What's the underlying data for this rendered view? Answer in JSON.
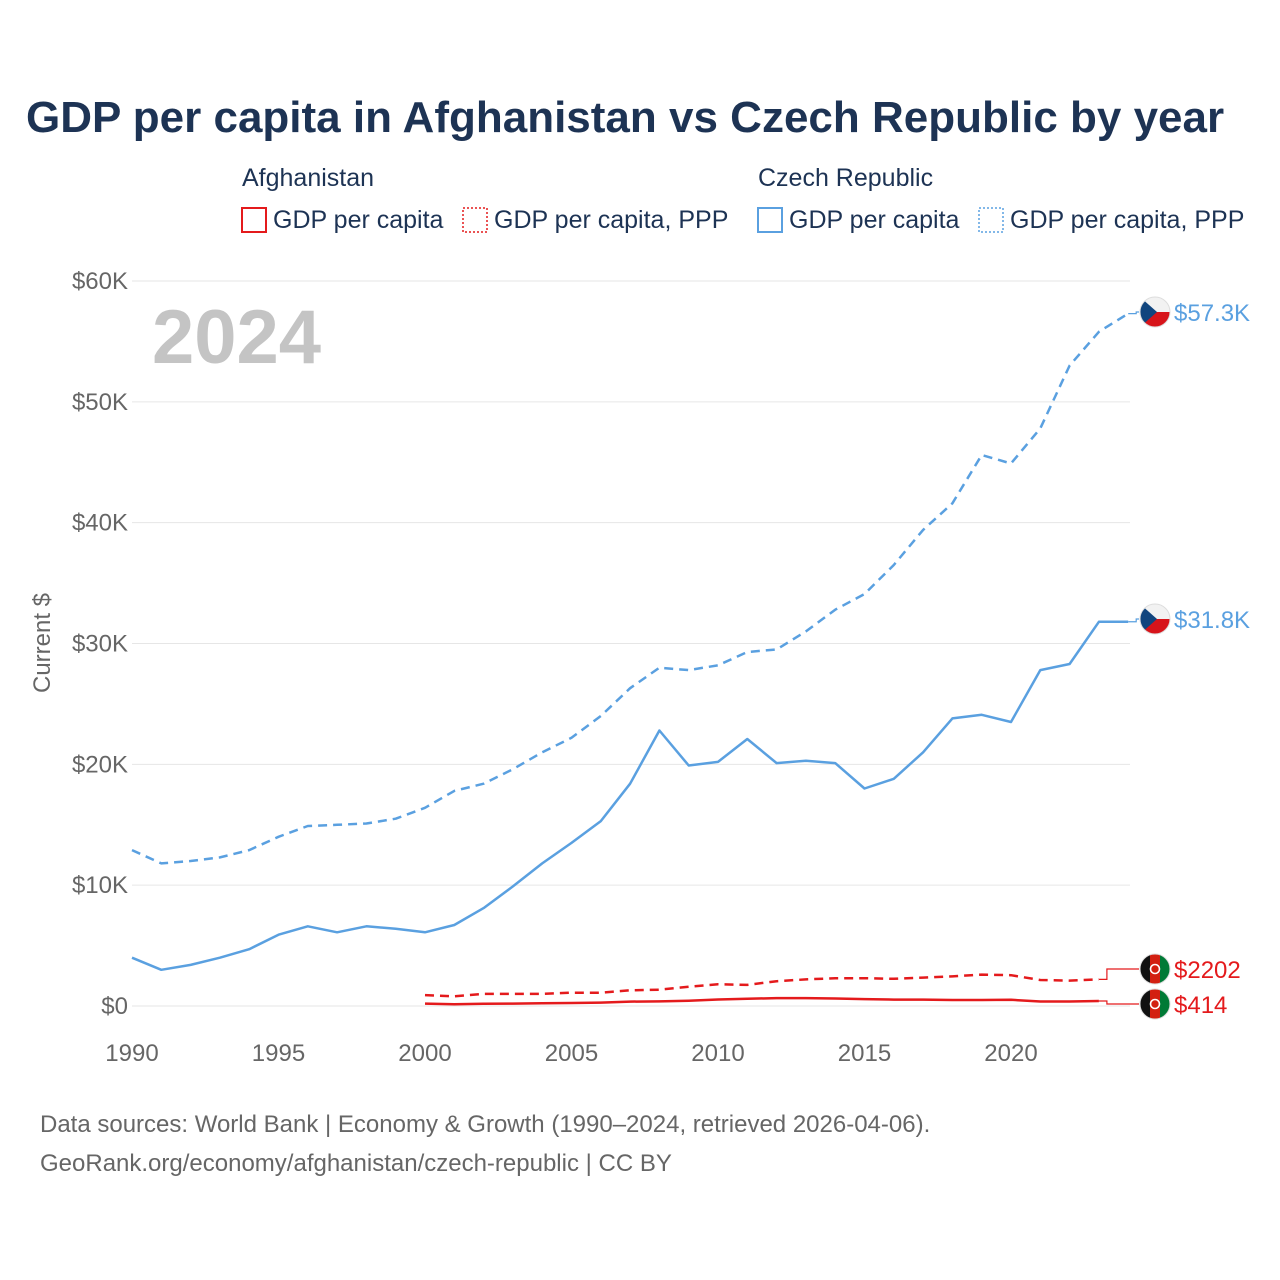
{
  "chart_data": {
    "type": "line",
    "title": "GDP per capita in Afghanistan vs Czech Republic by year",
    "ylabel": "Current $",
    "year_watermark": "2024",
    "xlim": [
      1990,
      2024
    ],
    "ylim": [
      0,
      60000
    ],
    "y_ticks": [
      {
        "value": 0,
        "label": "$0"
      },
      {
        "value": 10000,
        "label": "$10K"
      },
      {
        "value": 20000,
        "label": "$20K"
      },
      {
        "value": 30000,
        "label": "$30K"
      },
      {
        "value": 40000,
        "label": "$40K"
      },
      {
        "value": 50000,
        "label": "$50K"
      },
      {
        "value": 60000,
        "label": "$60K"
      }
    ],
    "x_ticks": [
      {
        "value": 1990,
        "label": "1990"
      },
      {
        "value": 1995,
        "label": "1995"
      },
      {
        "value": 2000,
        "label": "2000"
      },
      {
        "value": 2005,
        "label": "2005"
      },
      {
        "value": 2010,
        "label": "2010"
      },
      {
        "value": 2015,
        "label": "2015"
      },
      {
        "value": 2020,
        "label": "2020"
      }
    ],
    "legend": [
      {
        "group": "Afghanistan",
        "items": [
          {
            "label": "GDP per capita",
            "style": "solid",
            "color": "#e41a1c"
          },
          {
            "label": "GDP per capita, PPP",
            "style": "dotted",
            "color": "#e41a1c"
          }
        ]
      },
      {
        "group": "Czech Republic",
        "items": [
          {
            "label": "GDP per capita",
            "style": "solid",
            "color": "#5aa0e0"
          },
          {
            "label": "GDP per capita, PPP",
            "style": "dotted",
            "color": "#5aa0e0"
          }
        ]
      }
    ],
    "series": [
      {
        "name": "Czech Republic GDP per capita, PPP",
        "country": "Czech Republic",
        "color": "#5aa0e0",
        "dash": true,
        "end_label": "$57.3K",
        "x": [
          1990,
          1991,
          1992,
          1993,
          1994,
          1995,
          1996,
          1997,
          1998,
          1999,
          2000,
          2001,
          2002,
          2003,
          2004,
          2005,
          2006,
          2007,
          2008,
          2009,
          2010,
          2011,
          2012,
          2013,
          2014,
          2015,
          2016,
          2017,
          2018,
          2019,
          2020,
          2021,
          2022,
          2023,
          2024
        ],
        "values": [
          12900,
          11800,
          12000,
          12300,
          12900,
          14000,
          14900,
          15000,
          15100,
          15500,
          16400,
          17800,
          18400,
          19600,
          21000,
          22200,
          24000,
          26300,
          28000,
          27800,
          28200,
          29300,
          29500,
          31000,
          32800,
          34100,
          36500,
          39400,
          41600,
          45600,
          44900,
          47800,
          53000,
          55800,
          57300
        ]
      },
      {
        "name": "Czech Republic GDP per capita",
        "country": "Czech Republic",
        "color": "#5aa0e0",
        "dash": false,
        "end_label": "$31.8K",
        "x": [
          1990,
          1991,
          1992,
          1993,
          1994,
          1995,
          1996,
          1997,
          1998,
          1999,
          2000,
          2001,
          2002,
          2003,
          2004,
          2005,
          2006,
          2007,
          2008,
          2009,
          2010,
          2011,
          2012,
          2013,
          2014,
          2015,
          2016,
          2017,
          2018,
          2019,
          2020,
          2021,
          2022,
          2023,
          2024
        ],
        "values": [
          4000,
          3000,
          3400,
          4000,
          4700,
          5900,
          6600,
          6100,
          6600,
          6400,
          6100,
          6700,
          8100,
          9900,
          11800,
          13500,
          15300,
          18400,
          22800,
          19900,
          20200,
          22100,
          20100,
          20300,
          20100,
          18000,
          18800,
          21000,
          23800,
          24100,
          23500,
          27800,
          28300,
          31800,
          31800
        ]
      },
      {
        "name": "Afghanistan GDP per capita, PPP",
        "country": "Afghanistan",
        "color": "#e41a1c",
        "dash": true,
        "end_label": "$2202",
        "x": [
          2000,
          2001,
          2002,
          2003,
          2004,
          2005,
          2006,
          2007,
          2008,
          2009,
          2010,
          2011,
          2012,
          2013,
          2014,
          2015,
          2016,
          2017,
          2018,
          2019,
          2020,
          2021,
          2022,
          2023
        ],
        "values": [
          900,
          800,
          1000,
          1000,
          1000,
          1100,
          1100,
          1300,
          1350,
          1600,
          1800,
          1750,
          2050,
          2200,
          2300,
          2300,
          2250,
          2350,
          2450,
          2600,
          2550,
          2150,
          2100,
          2202
        ]
      },
      {
        "name": "Afghanistan GDP per capita",
        "country": "Afghanistan",
        "color": "#e41a1c",
        "dash": false,
        "end_label": "$414",
        "x": [
          2000,
          2001,
          2002,
          2003,
          2004,
          2005,
          2006,
          2007,
          2008,
          2009,
          2010,
          2011,
          2012,
          2013,
          2014,
          2015,
          2016,
          2017,
          2018,
          2019,
          2020,
          2021,
          2022,
          2023
        ],
        "values": [
          200,
          150,
          180,
          200,
          220,
          250,
          280,
          360,
          380,
          440,
          540,
          600,
          650,
          650,
          620,
          570,
          530,
          530,
          500,
          500,
          510,
          370,
          370,
          414
        ]
      }
    ]
  },
  "footer": {
    "source": "Data sources: World Bank | Economy & Growth (1990–2024, retrieved 2026-04-06).",
    "url": "GeoRank.org/economy/afghanistan/czech-republic | CC BY"
  }
}
